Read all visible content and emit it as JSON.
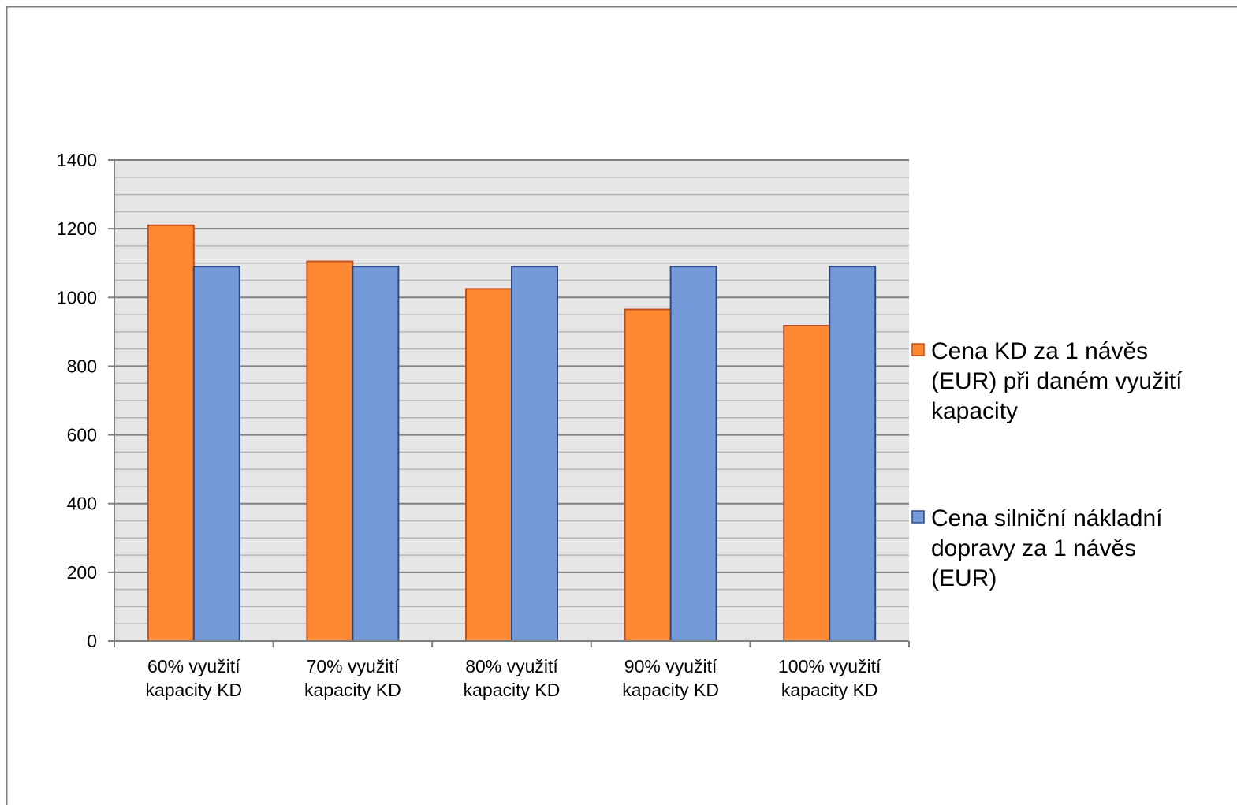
{
  "chart_data": {
    "type": "bar",
    "title": "",
    "xlabel": "",
    "ylabel": "",
    "ylim": [
      0,
      1400
    ],
    "y_ticks": [
      0,
      200,
      400,
      600,
      800,
      1000,
      1200,
      1400
    ],
    "y_minor_step": 50,
    "grid": true,
    "legend_position": "right",
    "categories": [
      [
        "60% využití",
        "kapacity KD"
      ],
      [
        "70% využití",
        "kapacity KD"
      ],
      [
        "80% využití",
        "kapacity KD"
      ],
      [
        "90% využití",
        "kapacity KD"
      ],
      [
        "100% využití",
        "kapacity KD"
      ]
    ],
    "series": [
      {
        "name": [
          "Cena KD za 1 návěs",
          "(EUR) při daném využití",
          "kapacity"
        ],
        "color": "#FF8833",
        "stroke": "#C0501C",
        "values": [
          1210,
          1105,
          1025,
          965,
          918
        ]
      },
      {
        "name": [
          "Cena silniční nákladní",
          "dopravy za 1 návěs",
          "(EUR)"
        ],
        "color": "#7399D8",
        "stroke": "#2E4A80",
        "values": [
          1090,
          1090,
          1090,
          1090,
          1090
        ]
      }
    ]
  }
}
